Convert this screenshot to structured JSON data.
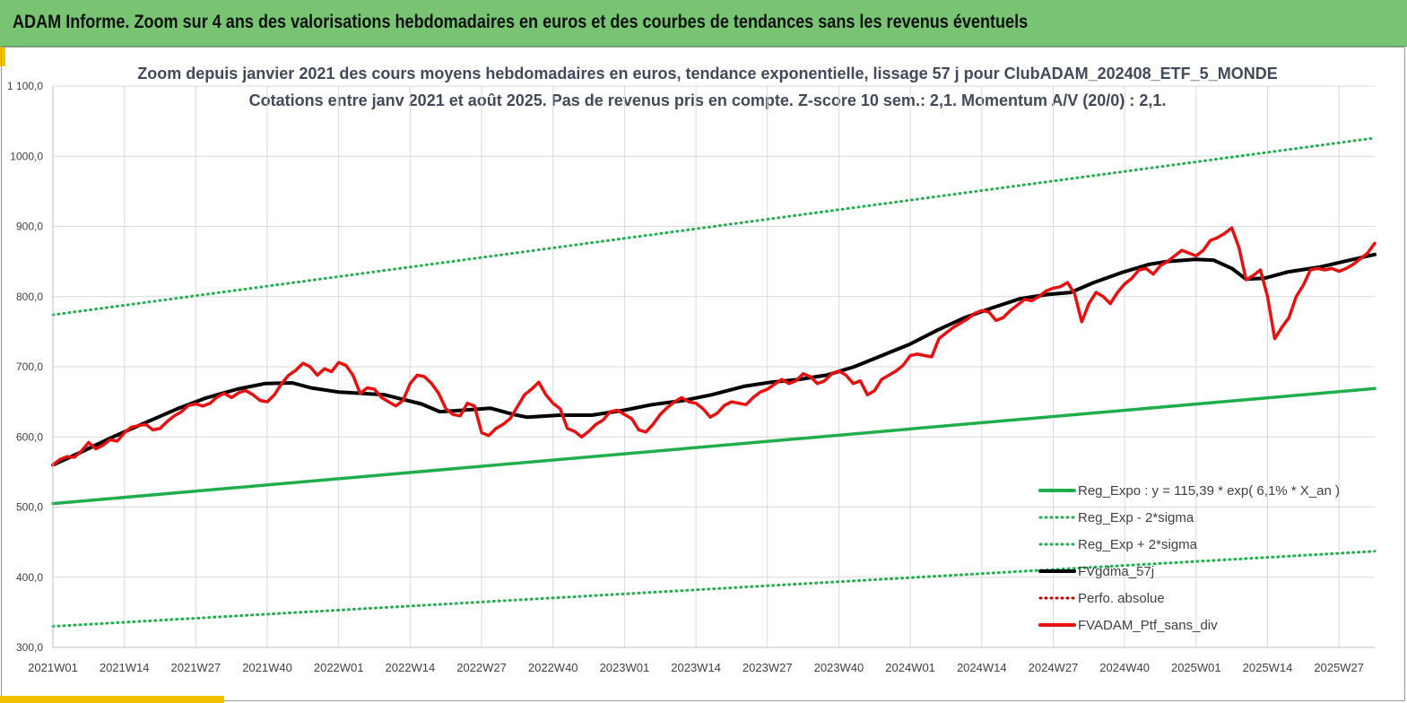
{
  "banner": {
    "title": "ADAM Informe. Zoom sur 4 ans des valorisations hebdomadaires en euros et des courbes de tendances sans les revenus éventuels"
  },
  "colors": {
    "banner_bg": "#77c473",
    "accent": "#f2c200",
    "reg_expo": "#1fae4b",
    "sigma": "#1fae4b",
    "fvgdma": "#000000",
    "perfo": "#c00000",
    "portfolio": "#e81010",
    "grid": "#d9d9d9"
  },
  "chart_data": {
    "type": "line",
    "title": "Zoom depuis janvier 2021 des cours moyens hebdomadaires  en euros, tendance exponentielle, lissage 57 j pour ClubADAM_202408_ETF_5_MONDE",
    "subtitle": "Cotations entre janv 2021 et août 2025. Pas de revenus pris en compte. Z-score 10 sem.: 2,1. Momentum A/V (20/0) : 2,1.",
    "xlabel": "",
    "ylabel": "",
    "ylim": [
      300,
      1100
    ],
    "yticks": [
      "300,0",
      "400,0",
      "500,0",
      "600,0",
      "700,0",
      "800,0",
      "900,0",
      "1000,0",
      "1 100,0"
    ],
    "xticks": [
      "2021W01",
      "2021W14",
      "2021W27",
      "2021W40",
      "2022W01",
      "2022W14",
      "2022W27",
      "2022W40",
      "2023W01",
      "2023W14",
      "2023W27",
      "2023W40",
      "2024W01",
      "2024W14",
      "2024W27",
      "2024W40",
      "2025W01",
      "2025W14",
      "2025W27"
    ],
    "grid": true,
    "legend_position": "bottom-right",
    "x_unit": "weeks since 2021W01",
    "series": [
      {
        "name": "Reg_Expo : y = 115,39 * exp( 6,1% *  X_an )",
        "style": "solid-thick",
        "color": "#1fae4b",
        "points": [
          [
            0,
            505
          ],
          [
            241,
            669
          ]
        ]
      },
      {
        "name": "Reg_Exp - 2*sigma",
        "style": "dotted",
        "color": "#1fae4b",
        "points": [
          [
            0,
            330
          ],
          [
            241,
            437
          ]
        ]
      },
      {
        "name": "Reg_Exp + 2*sigma",
        "style": "dotted",
        "color": "#1fae4b",
        "points": [
          [
            0,
            774
          ],
          [
            241,
            1026
          ]
        ]
      },
      {
        "name": "FVgdma_57j",
        "style": "solid",
        "color": "#000000",
        "points": [
          [
            0,
            560
          ],
          [
            6,
            578
          ],
          [
            13,
            600
          ],
          [
            20,
            620
          ],
          [
            27,
            640
          ],
          [
            33,
            655
          ],
          [
            40,
            668
          ],
          [
            46,
            676
          ],
          [
            52,
            677
          ],
          [
            56,
            670
          ],
          [
            62,
            664
          ],
          [
            72,
            660
          ],
          [
            80,
            647
          ],
          [
            84,
            636
          ],
          [
            89,
            638
          ],
          [
            95,
            641
          ],
          [
            100,
            632
          ],
          [
            103,
            628
          ],
          [
            110,
            631
          ],
          [
            117,
            631
          ],
          [
            124,
            638
          ],
          [
            130,
            646
          ],
          [
            137,
            652
          ],
          [
            143,
            660
          ],
          [
            150,
            672
          ],
          [
            156,
            678
          ],
          [
            162,
            682
          ],
          [
            168,
            688
          ],
          [
            174,
            700
          ],
          [
            180,
            716
          ],
          [
            186,
            732
          ],
          [
            192,
            752
          ],
          [
            198,
            770
          ],
          [
            204,
            784
          ],
          [
            210,
            797
          ],
          [
            216,
            803
          ],
          [
            221,
            806
          ],
          [
            226,
            820
          ],
          [
            232,
            834
          ],
          [
            238,
            846
          ],
          [
            242,
            850
          ],
          [
            248,
            853
          ],
          [
            252,
            852
          ],
          [
            256,
            840
          ],
          [
            259,
            825
          ],
          [
            263,
            826
          ],
          [
            268,
            835
          ],
          [
            275,
            842
          ],
          [
            281,
            851
          ],
          [
            287,
            860
          ]
        ]
      },
      {
        "name": "Perfo. absolue",
        "style": "dotted",
        "color": "#c00000",
        "points": []
      },
      {
        "name": "FVADAM_Ptf_sans_div",
        "style": "solid-thick",
        "color": "#e81010",
        "points": [
          [
            0,
            560
          ],
          [
            2,
            568
          ],
          [
            4,
            572
          ],
          [
            6,
            571
          ],
          [
            8,
            580
          ],
          [
            10,
            592
          ],
          [
            12,
            583
          ],
          [
            14,
            588
          ],
          [
            16,
            596
          ],
          [
            18,
            594
          ],
          [
            20,
            606
          ],
          [
            22,
            614
          ],
          [
            24,
            616
          ],
          [
            26,
            618
          ],
          [
            28,
            610
          ],
          [
            30,
            612
          ],
          [
            32,
            622
          ],
          [
            34,
            630
          ],
          [
            36,
            636
          ],
          [
            38,
            645
          ],
          [
            40,
            647
          ],
          [
            42,
            644
          ],
          [
            44,
            648
          ],
          [
            46,
            657
          ],
          [
            48,
            662
          ],
          [
            50,
            656
          ],
          [
            52,
            663
          ],
          [
            54,
            666
          ],
          [
            56,
            660
          ],
          [
            58,
            652
          ],
          [
            60,
            650
          ],
          [
            62,
            660
          ],
          [
            64,
            676
          ],
          [
            66,
            688
          ],
          [
            68,
            695
          ],
          [
            70,
            705
          ],
          [
            72,
            700
          ],
          [
            74,
            688
          ],
          [
            76,
            697
          ],
          [
            78,
            693
          ],
          [
            80,
            706
          ],
          [
            82,
            702
          ],
          [
            84,
            688
          ],
          [
            86,
            662
          ],
          [
            88,
            670
          ],
          [
            90,
            668
          ],
          [
            92,
            656
          ],
          [
            94,
            650
          ],
          [
            96,
            644
          ],
          [
            98,
            652
          ],
          [
            100,
            676
          ],
          [
            102,
            688
          ],
          [
            104,
            686
          ],
          [
            106,
            676
          ],
          [
            108,
            662
          ],
          [
            110,
            640
          ],
          [
            112,
            632
          ],
          [
            114,
            630
          ],
          [
            116,
            648
          ],
          [
            118,
            644
          ],
          [
            120,
            606
          ],
          [
            122,
            602
          ],
          [
            124,
            612
          ],
          [
            126,
            618
          ],
          [
            128,
            626
          ],
          [
            130,
            643
          ],
          [
            132,
            660
          ],
          [
            134,
            668
          ],
          [
            136,
            678
          ],
          [
            138,
            660
          ],
          [
            140,
            648
          ],
          [
            142,
            640
          ],
          [
            144,
            612
          ],
          [
            146,
            608
          ],
          [
            148,
            600
          ],
          [
            150,
            608
          ],
          [
            152,
            618
          ],
          [
            154,
            624
          ],
          [
            156,
            636
          ],
          [
            158,
            638
          ],
          [
            160,
            632
          ],
          [
            162,
            626
          ],
          [
            164,
            610
          ],
          [
            166,
            607
          ],
          [
            168,
            618
          ],
          [
            170,
            632
          ],
          [
            172,
            642
          ],
          [
            174,
            650
          ],
          [
            176,
            656
          ],
          [
            178,
            650
          ],
          [
            180,
            648
          ],
          [
            182,
            640
          ],
          [
            184,
            628
          ],
          [
            186,
            634
          ],
          [
            188,
            645
          ],
          [
            190,
            650
          ],
          [
            192,
            648
          ],
          [
            194,
            646
          ],
          [
            196,
            656
          ],
          [
            198,
            664
          ],
          [
            200,
            668
          ],
          [
            202,
            675
          ],
          [
            204,
            682
          ],
          [
            206,
            676
          ],
          [
            208,
            680
          ],
          [
            210,
            690
          ],
          [
            212,
            686
          ],
          [
            214,
            676
          ],
          [
            216,
            680
          ],
          [
            218,
            690
          ],
          [
            220,
            694
          ],
          [
            222,
            688
          ],
          [
            224,
            676
          ],
          [
            226,
            680
          ],
          [
            228,
            660
          ],
          [
            230,
            666
          ],
          [
            232,
            682
          ],
          [
            234,
            688
          ],
          [
            236,
            694
          ],
          [
            238,
            702
          ],
          [
            240,
            716
          ],
          [
            242,
            718
          ],
          [
            244,
            716
          ],
          [
            246,
            714
          ],
          [
            248,
            740
          ],
          [
            250,
            748
          ],
          [
            252,
            756
          ],
          [
            254,
            762
          ],
          [
            256,
            768
          ],
          [
            258,
            776
          ],
          [
            260,
            780
          ],
          [
            262,
            778
          ],
          [
            264,
            766
          ],
          [
            266,
            770
          ],
          [
            268,
            780
          ],
          [
            270,
            788
          ],
          [
            272,
            796
          ],
          [
            274,
            794
          ],
          [
            276,
            800
          ],
          [
            278,
            808
          ],
          [
            280,
            812
          ],
          [
            282,
            814
          ],
          [
            284,
            820
          ],
          [
            286,
            804
          ],
          [
            288,
            764
          ],
          [
            290,
            790
          ],
          [
            292,
            806
          ],
          [
            294,
            800
          ],
          [
            296,
            790
          ],
          [
            298,
            806
          ],
          [
            300,
            818
          ],
          [
            302,
            826
          ],
          [
            304,
            838
          ],
          [
            306,
            840
          ],
          [
            308,
            832
          ],
          [
            310,
            844
          ],
          [
            312,
            850
          ],
          [
            314,
            858
          ],
          [
            316,
            866
          ],
          [
            318,
            862
          ],
          [
            320,
            858
          ],
          [
            322,
            866
          ],
          [
            324,
            880
          ],
          [
            326,
            884
          ],
          [
            328,
            890
          ],
          [
            330,
            898
          ],
          [
            332,
            870
          ],
          [
            334,
            824
          ],
          [
            336,
            830
          ],
          [
            338,
            838
          ],
          [
            340,
            800
          ],
          [
            342,
            740
          ],
          [
            344,
            756
          ],
          [
            346,
            770
          ],
          [
            348,
            800
          ],
          [
            350,
            816
          ],
          [
            352,
            838
          ],
          [
            354,
            840
          ],
          [
            356,
            838
          ],
          [
            358,
            840
          ],
          [
            360,
            836
          ],
          [
            362,
            840
          ],
          [
            364,
            846
          ],
          [
            366,
            854
          ],
          [
            368,
            862
          ],
          [
            370,
            876
          ]
        ]
      }
    ]
  },
  "legend": {
    "items": [
      {
        "label": "Reg_Expo : y = 115,39 * exp( 6,1% *  X_an )",
        "style": "solid-thick",
        "color": "#1fae4b"
      },
      {
        "label": "Reg_Exp - 2*sigma",
        "style": "dotted",
        "color": "#1fae4b"
      },
      {
        "label": "Reg_Exp + 2*sigma",
        "style": "dotted",
        "color": "#1fae4b"
      },
      {
        "label": "FVgdma_57j",
        "style": "solid-thick",
        "color": "#000000"
      },
      {
        "label": "Perfo. absolue",
        "style": "dotted",
        "color": "#c00000"
      },
      {
        "label": "FVADAM_Ptf_sans_div",
        "style": "solid-thick",
        "color": "#e81010"
      }
    ]
  }
}
